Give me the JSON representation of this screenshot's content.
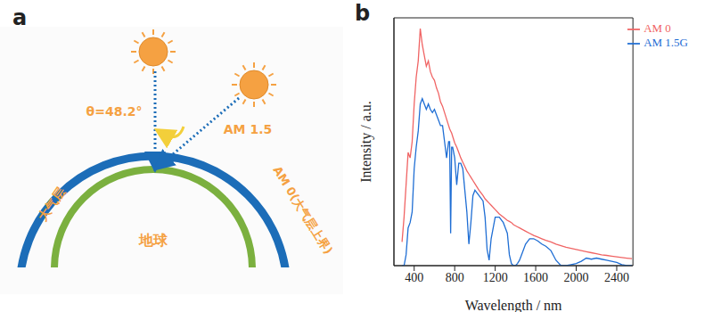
{
  "panel_a": {
    "label": "a",
    "texts": {
      "angle": "θ=48.2°",
      "am15": "AM 1.5",
      "atmosphere": "大气层",
      "earth": "地球",
      "am0": "AM 0(大气层上界)"
    }
  },
  "chart_data": {
    "panel_label": "b",
    "type": "line",
    "x_label": "Wavelength / nm",
    "y_label": "Intensity / a.u.",
    "x": [
      280,
      300,
      320,
      340,
      360,
      380,
      400,
      420,
      440,
      460,
      480,
      500,
      520,
      540,
      560,
      580,
      600,
      620,
      640,
      660,
      680,
      700,
      720,
      740,
      750,
      760,
      770,
      780,
      800,
      820,
      840,
      860,
      880,
      900,
      920,
      940,
      960,
      980,
      1000,
      1040,
      1080,
      1100,
      1120,
      1140,
      1160,
      1200,
      1240,
      1280,
      1320,
      1340,
      1360,
      1380,
      1400,
      1420,
      1440,
      1460,
      1500,
      1540,
      1580,
      1620,
      1660,
      1700,
      1750,
      1800,
      1850,
      1900,
      1950,
      2000,
      2050,
      2100,
      2150,
      2200,
      2250,
      2300,
      2350,
      2400,
      2450,
      2500,
      2550
    ],
    "series": [
      {
        "name": "AM 0",
        "color": "#f06464",
        "values": [
          0.22,
          0.45,
          0.75,
          1.05,
          1.0,
          1.15,
          1.5,
          1.75,
          1.9,
          2.2,
          2.05,
          1.95,
          1.85,
          1.9,
          1.8,
          1.75,
          1.72,
          1.65,
          1.6,
          1.52,
          1.48,
          1.42,
          1.36,
          1.3,
          1.27,
          1.25,
          1.23,
          1.2,
          1.14,
          1.1,
          1.05,
          1.0,
          0.96,
          0.92,
          0.88,
          0.85,
          0.82,
          0.79,
          0.76,
          0.7,
          0.65,
          0.62,
          0.6,
          0.58,
          0.56,
          0.52,
          0.48,
          0.45,
          0.42,
          0.41,
          0.4,
          0.38,
          0.37,
          0.36,
          0.35,
          0.34,
          0.32,
          0.3,
          0.28,
          0.265,
          0.25,
          0.235,
          0.22,
          0.2,
          0.185,
          0.17,
          0.16,
          0.15,
          0.14,
          0.13,
          0.12,
          0.11,
          0.1,
          0.095,
          0.088,
          0.082,
          0.076,
          0.07,
          0.065
        ]
      },
      {
        "name": "AM 1.5G",
        "color": "#1f6ed4",
        "values": [
          0,
          0,
          0.1,
          0.35,
          0.4,
          0.5,
          0.9,
          1.1,
          1.25,
          1.5,
          1.55,
          1.5,
          1.45,
          1.5,
          1.45,
          1.42,
          1.45,
          1.4,
          1.35,
          1.3,
          1.3,
          1.15,
          1.0,
          1.15,
          1.15,
          0.3,
          1.1,
          1.1,
          1.0,
          0.75,
          0.95,
          0.95,
          0.9,
          0.7,
          0.5,
          0.2,
          0.4,
          0.65,
          0.7,
          0.65,
          0.6,
          0.45,
          0.15,
          0.05,
          0.25,
          0.45,
          0.45,
          0.4,
          0.3,
          0.1,
          0.02,
          0,
          0,
          0.02,
          0.05,
          0.1,
          0.2,
          0.25,
          0.25,
          0.23,
          0.2,
          0.18,
          0.14,
          0.05,
          0,
          0,
          0.01,
          0.02,
          0.04,
          0.07,
          0.06,
          0.07,
          0.06,
          0.05,
          0.04,
          0.03,
          0.01,
          0,
          0
        ]
      }
    ],
    "xlim": [
      200,
      2560
    ],
    "xticks": [
      400,
      800,
      1200,
      1600,
      2000,
      2400
    ],
    "ylim": [
      0,
      2.3
    ],
    "tick_labels": "x",
    "legend": "upper right"
  }
}
